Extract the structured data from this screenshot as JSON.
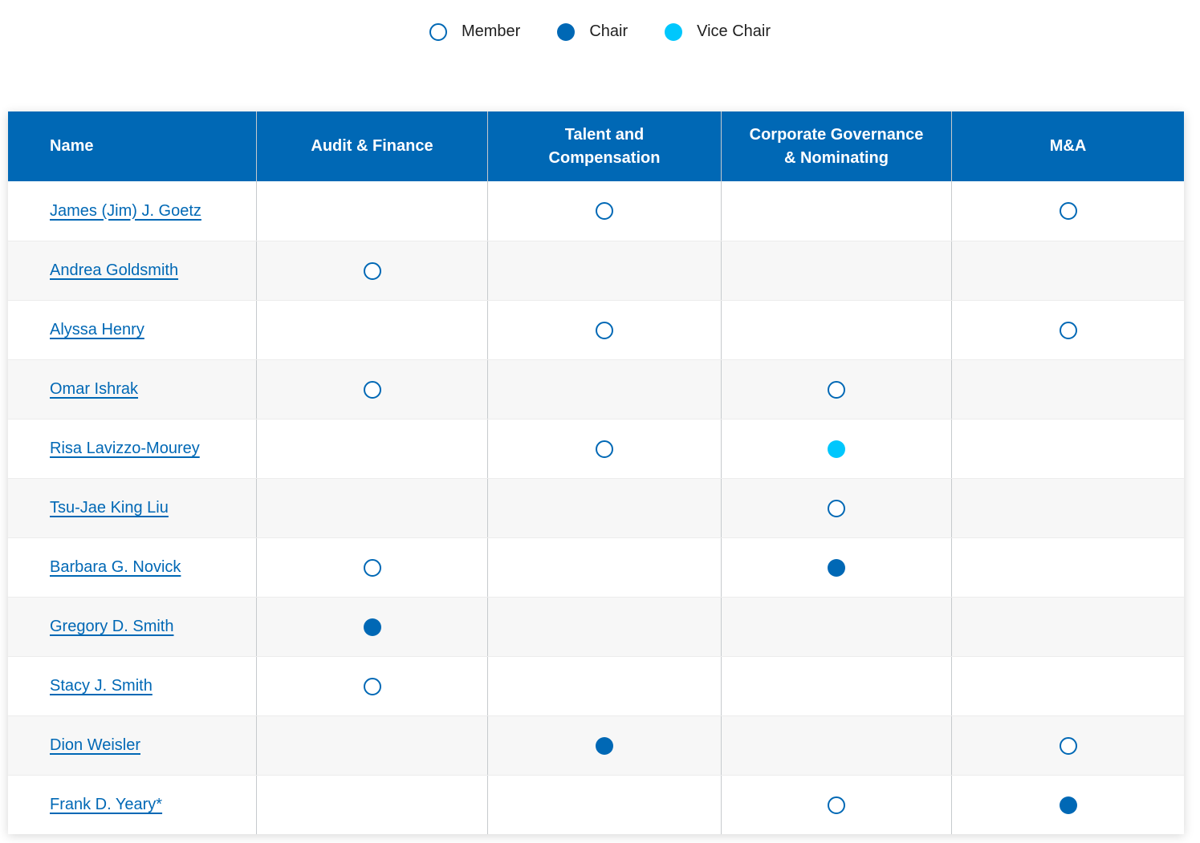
{
  "legend": {
    "items": [
      {
        "label": "Member",
        "role": "member"
      },
      {
        "label": "Chair",
        "role": "chair"
      },
      {
        "label": "Vice Chair",
        "role": "vice-chair"
      }
    ]
  },
  "colors": {
    "header_bg": "#0068b5",
    "link": "#0068b5",
    "member_border": "#0068b5",
    "chair_fill": "#0068b5",
    "vice_chair_fill": "#00c7fd",
    "row_alt_bg": "#f7f7f7"
  },
  "table": {
    "columns": [
      {
        "label": "Name"
      },
      {
        "label": "Audit & Finance"
      },
      {
        "label": "Talent and\nCompensation"
      },
      {
        "label": "Corporate Governance\n& Nominating"
      },
      {
        "label": "M&A"
      }
    ],
    "rows": [
      {
        "name": "James (Jim) J. Goetz",
        "memberships": [
          "",
          "member",
          "",
          "member"
        ]
      },
      {
        "name": "Andrea Goldsmith",
        "memberships": [
          "member",
          "",
          "",
          ""
        ]
      },
      {
        "name": "Alyssa Henry",
        "memberships": [
          "",
          "member",
          "",
          "member"
        ]
      },
      {
        "name": "Omar Ishrak",
        "memberships": [
          "member",
          "",
          "member",
          ""
        ]
      },
      {
        "name": "Risa Lavizzo-Mourey",
        "memberships": [
          "",
          "member",
          "vice-chair",
          ""
        ]
      },
      {
        "name": "Tsu-Jae King Liu",
        "memberships": [
          "",
          "",
          "member",
          ""
        ]
      },
      {
        "name": "Barbara G. Novick",
        "memberships": [
          "member",
          "",
          "chair",
          ""
        ]
      },
      {
        "name": "Gregory D. Smith",
        "memberships": [
          "chair",
          "",
          "",
          ""
        ]
      },
      {
        "name": "Stacy J. Smith",
        "memberships": [
          "member",
          "",
          "",
          ""
        ]
      },
      {
        "name": "Dion Weisler",
        "memberships": [
          "",
          "chair",
          "",
          "member"
        ]
      },
      {
        "name": "Frank D. Yeary*",
        "memberships": [
          "",
          "",
          "member",
          "chair"
        ]
      }
    ]
  }
}
